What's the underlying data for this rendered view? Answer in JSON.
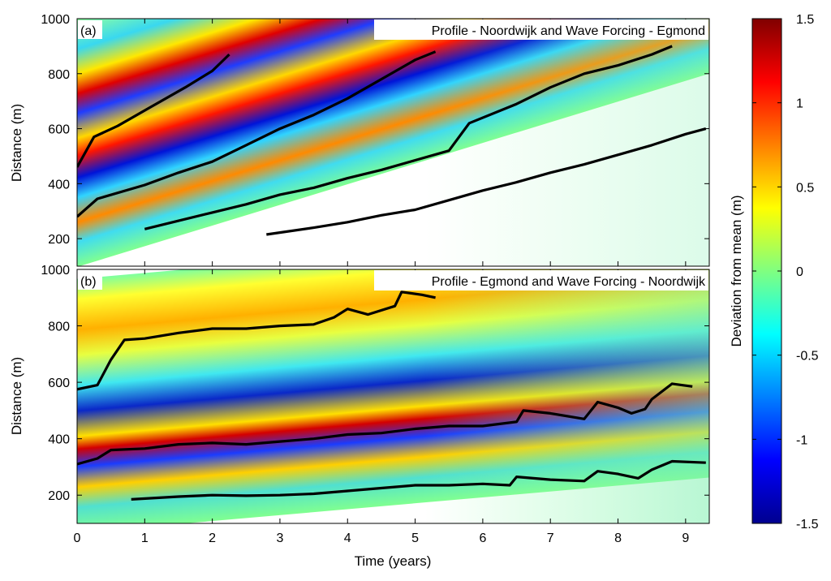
{
  "chart_data": {
    "type": "heatmap",
    "xlabel": "Time (years)",
    "x_ticks": [
      "0",
      "1",
      "2",
      "3",
      "4",
      "5",
      "6",
      "7",
      "8",
      "9"
    ],
    "xlim": [
      0,
      9.35
    ],
    "panels": [
      {
        "tag": "(a)",
        "title": "Profile - Noordwijk and Wave Forcing - Egmond",
        "ylabel": "Distance (m)",
        "ylim": [
          100,
          1000
        ],
        "y_ticks": [
          "200",
          "400",
          "600",
          "800",
          "1000"
        ],
        "bar_crests": [
          [
            [
              0,
              460
            ],
            [
              0.25,
              570
            ],
            [
              0.6,
              610
            ],
            [
              1.1,
              680
            ],
            [
              1.6,
              750
            ],
            [
              2.0,
              810
            ],
            [
              2.25,
              870
            ]
          ],
          [
            [
              0,
              280
            ],
            [
              0.3,
              345
            ],
            [
              1.0,
              395
            ],
            [
              1.5,
              440
            ],
            [
              2.0,
              480
            ],
            [
              2.5,
              540
            ],
            [
              3.0,
              600
            ],
            [
              3.5,
              650
            ],
            [
              4.0,
              710
            ],
            [
              4.5,
              780
            ],
            [
              5.0,
              850
            ],
            [
              5.3,
              880
            ]
          ],
          [
            [
              1.0,
              235
            ],
            [
              1.5,
              265
            ],
            [
              2.0,
              295
            ],
            [
              2.5,
              325
            ],
            [
              3.0,
              360
            ],
            [
              3.5,
              385
            ],
            [
              4.0,
              420
            ],
            [
              4.5,
              450
            ],
            [
              5.0,
              485
            ],
            [
              5.5,
              520
            ],
            [
              5.8,
              620
            ],
            [
              6.5,
              690
            ],
            [
              7.0,
              750
            ],
            [
              7.5,
              800
            ],
            [
              8.0,
              830
            ],
            [
              8.5,
              870
            ],
            [
              8.8,
              900
            ]
          ],
          [
            [
              2.8,
              215
            ],
            [
              3.5,
              240
            ],
            [
              4.0,
              260
            ],
            [
              4.5,
              285
            ],
            [
              5.0,
              305
            ],
            [
              5.5,
              340
            ],
            [
              6.0,
              375
            ],
            [
              6.5,
              405
            ],
            [
              7.0,
              440
            ],
            [
              7.5,
              470
            ],
            [
              8.0,
              505
            ],
            [
              8.5,
              540
            ],
            [
              9.0,
              580
            ],
            [
              9.3,
              600
            ]
          ]
        ]
      },
      {
        "tag": "(b)",
        "title": "Profile - Egmond and Wave Forcing - Noordwijk",
        "ylabel": "Distance (m)",
        "ylim": [
          100,
          1000
        ],
        "y_ticks": [
          "200",
          "400",
          "600",
          "800",
          "1000"
        ],
        "bar_crests": [
          [
            [
              0,
              575
            ],
            [
              0.3,
              590
            ],
            [
              0.5,
              680
            ],
            [
              0.7,
              750
            ],
            [
              1.0,
              755
            ],
            [
              1.5,
              775
            ],
            [
              2.0,
              790
            ],
            [
              2.5,
              790
            ],
            [
              3.0,
              800
            ],
            [
              3.5,
              805
            ],
            [
              3.8,
              830
            ],
            [
              4.0,
              860
            ],
            [
              4.3,
              840
            ],
            [
              4.7,
              870
            ],
            [
              4.8,
              920
            ],
            [
              5.1,
              910
            ],
            [
              5.3,
              900
            ]
          ],
          [
            [
              0,
              310
            ],
            [
              0.3,
              330
            ],
            [
              0.5,
              360
            ],
            [
              1.0,
              365
            ],
            [
              1.5,
              380
            ],
            [
              2.0,
              385
            ],
            [
              2.5,
              380
            ],
            [
              3.0,
              390
            ],
            [
              3.5,
              400
            ],
            [
              4.0,
              415
            ],
            [
              4.5,
              420
            ],
            [
              5.0,
              435
            ],
            [
              5.5,
              445
            ],
            [
              6.0,
              445
            ],
            [
              6.5,
              460
            ],
            [
              6.6,
              500
            ],
            [
              7.0,
              490
            ],
            [
              7.5,
              470
            ],
            [
              7.7,
              530
            ],
            [
              8.0,
              510
            ],
            [
              8.2,
              490
            ],
            [
              8.4,
              505
            ],
            [
              8.5,
              540
            ],
            [
              8.8,
              595
            ],
            [
              9.1,
              585
            ]
          ],
          [
            [
              0.8,
              185
            ],
            [
              1.5,
              195
            ],
            [
              2.0,
              200
            ],
            [
              2.5,
              198
            ],
            [
              3.0,
              200
            ],
            [
              3.5,
              205
            ],
            [
              4.0,
              215
            ],
            [
              4.5,
              225
            ],
            [
              5.0,
              235
            ],
            [
              5.5,
              235
            ],
            [
              6.0,
              240
            ],
            [
              6.4,
              235
            ],
            [
              6.5,
              265
            ],
            [
              7.0,
              255
            ],
            [
              7.5,
              250
            ],
            [
              7.7,
              285
            ],
            [
              8.0,
              275
            ],
            [
              8.3,
              260
            ],
            [
              8.5,
              290
            ],
            [
              8.8,
              320
            ],
            [
              9.3,
              315
            ]
          ]
        ]
      }
    ],
    "colorbar": {
      "label": "Deviation from mean (m)",
      "range": [
        -1.5,
        1.5
      ],
      "ticks": [
        "1.5",
        "1",
        "0.5",
        "0",
        "-0.5",
        "-1",
        "-1.5"
      ],
      "colormap": "jet"
    }
  }
}
